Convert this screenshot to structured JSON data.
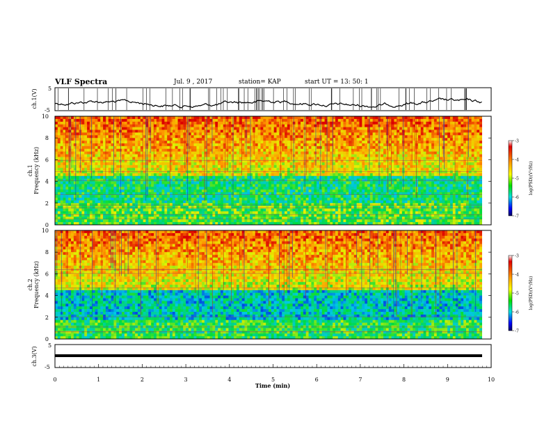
{
  "header": {
    "title": "VLF Spectra",
    "date": "Jul. 9 , 2017",
    "station": "station= KAP",
    "start": "start UT = 13: 50: 1"
  },
  "chart_data": [
    {
      "type": "line",
      "panel": "ch1-waveform",
      "ylabel": "ch.1(V)",
      "yticks": [
        "5",
        "-5"
      ],
      "ylim": [
        -5,
        5
      ],
      "xlim": [
        0,
        10
      ]
    },
    {
      "type": "heatmap",
      "panel": "ch1-spectrogram",
      "ylabel_channel": "ch.1",
      "ylabel": "Frequency (kHz)",
      "yticks": [
        "0",
        "2",
        "4",
        "6",
        "8",
        "10"
      ],
      "ylim": [
        0,
        10
      ],
      "xlim": [
        0,
        10
      ],
      "colorbar": {
        "label": "log(PSD)(V²/Hz)",
        "ticks": [
          "-3",
          "-4",
          "-5",
          "-6",
          "-7"
        ],
        "range": [
          -7,
          -3
        ]
      }
    },
    {
      "type": "heatmap",
      "panel": "ch2-spectrogram",
      "ylabel_channel": "ch.2",
      "ylabel": "Frequency (kHz)",
      "yticks": [
        "0",
        "2",
        "4",
        "6",
        "8",
        "10"
      ],
      "ylim": [
        0,
        10
      ],
      "xlim": [
        0,
        10
      ],
      "colorbar": {
        "label": "log(PSD)(V²/Hz)",
        "ticks": [
          "-3",
          "-4",
          "-5",
          "-6",
          "-7"
        ],
        "range": [
          -7,
          -3
        ]
      }
    },
    {
      "type": "line",
      "panel": "ch3-waveform",
      "ylabel": "ch.3(V)",
      "yticks": [
        "5",
        "-5"
      ],
      "ylim": [
        -5,
        5
      ],
      "xlim": [
        0,
        10
      ],
      "xlabel": "Time (min)",
      "xticks": [
        "0",
        "1",
        "2",
        "3",
        "4",
        "5",
        "6",
        "7",
        "8",
        "9",
        "10"
      ]
    }
  ]
}
